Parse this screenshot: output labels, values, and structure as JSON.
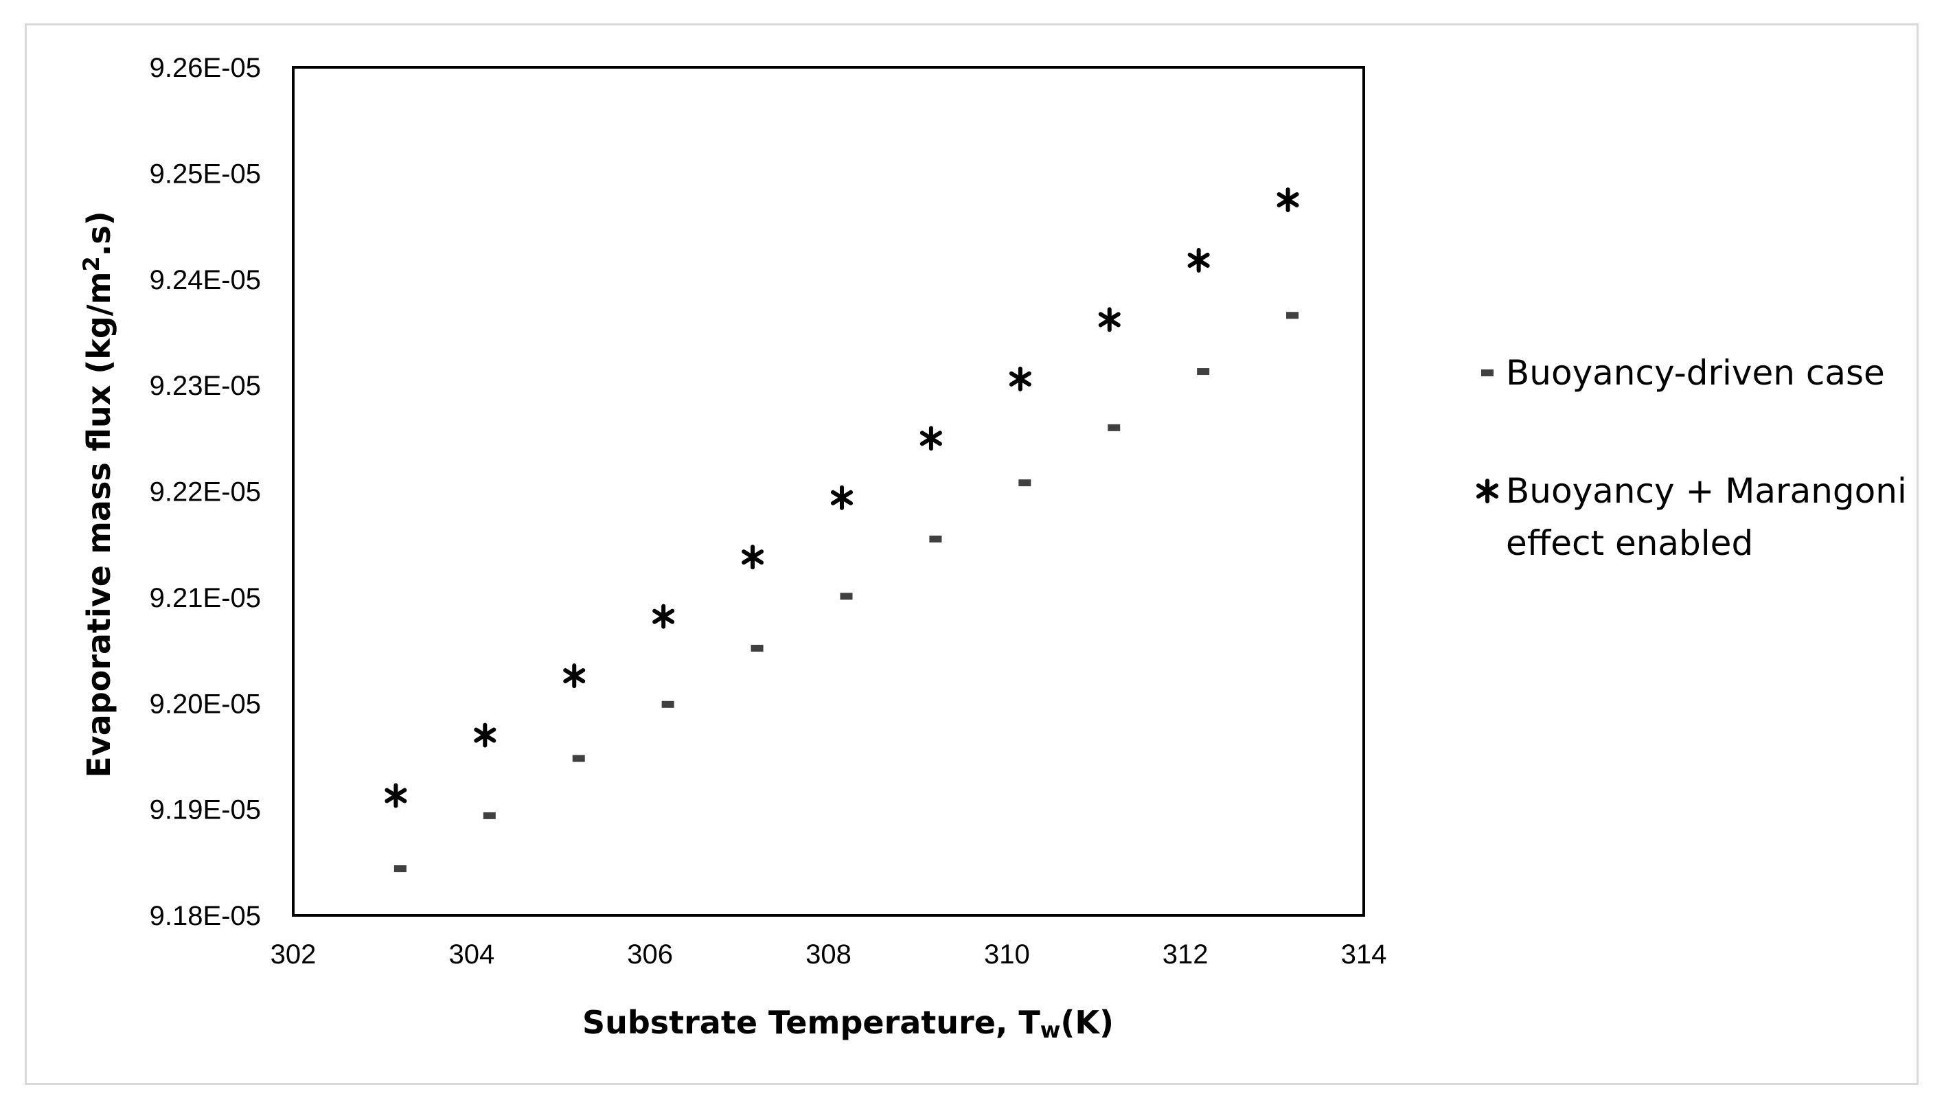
{
  "chart_data": {
    "type": "scatter",
    "title": "",
    "xlabel": "Substrate Temperature, T",
    "xlabel_sub": "w",
    "xlabel_suffix": "(K)",
    "ylabel": "Evaporative mass flux (kg/m",
    "ylabel_sup": "2",
    "ylabel_suffix": ".s)",
    "xlim": [
      302,
      314
    ],
    "ylim": [
      9.18e-05,
      9.26e-05
    ],
    "x_ticks": [
      "302",
      "304",
      "306",
      "308",
      "310",
      "312",
      "314"
    ],
    "y_ticks": [
      "9.26E-05",
      "9.25E-05",
      "9.24E-05",
      "9.23E-05",
      "9.22E-05",
      "9.21E-05",
      "9.20E-05",
      "9.19E-05",
      "9.18E-05"
    ],
    "grid": false,
    "legend_position": "right",
    "series": [
      {
        "name": "Buoyancy-driven case",
        "marker": "dash",
        "color": "#404040",
        "x": [
          303.2,
          304.2,
          305.2,
          306.2,
          307.2,
          308.2,
          309.2,
          310.2,
          311.2,
          312.2,
          313.2
        ],
        "y": [
          9.1844e-05,
          9.1894e-05,
          9.1948e-05,
          9.1999e-05,
          9.2052e-05,
          9.2101e-05,
          9.2155e-05,
          9.2208e-05,
          9.226e-05,
          9.2313e-05,
          9.2366e-05
        ]
      },
      {
        "name": "Buoyancy + Marangoni effect enabled",
        "marker": "asterisk",
        "color": "#000000",
        "x": [
          303.15,
          304.15,
          305.15,
          306.15,
          307.15,
          308.15,
          309.15,
          310.15,
          311.15,
          312.15,
          313.15
        ],
        "y": [
          9.1913e-05,
          9.197e-05,
          9.2026e-05,
          9.2082e-05,
          9.2138e-05,
          9.2194e-05,
          9.225e-05,
          9.2306e-05,
          9.2362e-05,
          9.2418e-05,
          9.2475e-05
        ]
      }
    ],
    "legend_entries": [
      "Buoyancy-driven case",
      "Buoyancy + Marangoni",
      "effect enabled"
    ]
  }
}
